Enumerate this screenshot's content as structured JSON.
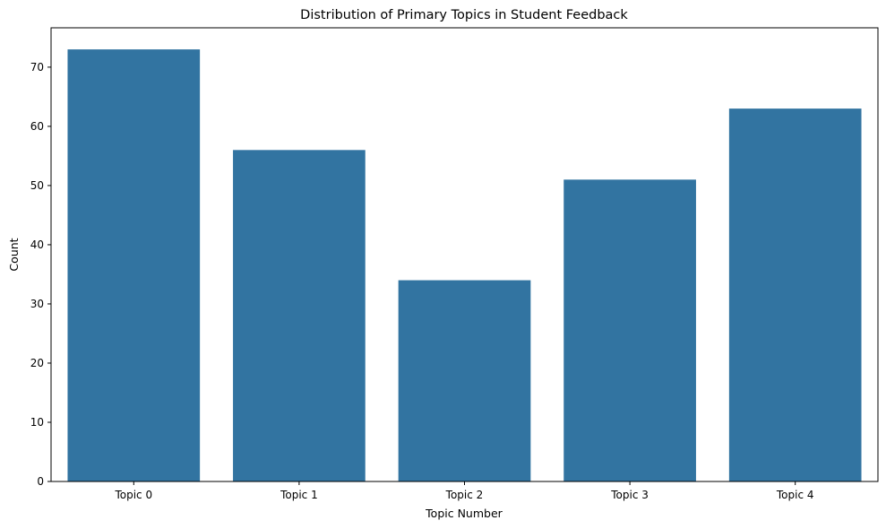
{
  "chart_data": {
    "type": "bar",
    "title": "Distribution of Primary Topics in Student Feedback",
    "xlabel": "Topic Number",
    "ylabel": "Count",
    "categories": [
      "Topic 0",
      "Topic 1",
      "Topic 2",
      "Topic 3",
      "Topic 4"
    ],
    "values": [
      73,
      56,
      34,
      51,
      63
    ],
    "ylim": [
      0,
      76.65
    ],
    "yticks": [
      0,
      10,
      20,
      30,
      40,
      50,
      60,
      70
    ],
    "bar_color": "#3274a1",
    "grid": false,
    "legend": "none"
  }
}
